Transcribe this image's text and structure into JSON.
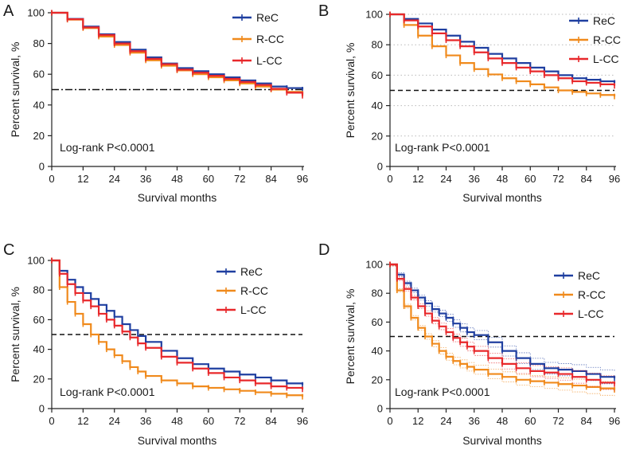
{
  "chart_data": [
    {
      "type": "line",
      "panel": "A",
      "xlabel": "Survival months",
      "ylabel": "Percent survival, %",
      "xlim": [
        0,
        96
      ],
      "ylim": [
        0,
        100
      ],
      "xticks": [
        0,
        12,
        24,
        36,
        48,
        60,
        72,
        84,
        96
      ],
      "yticks": [
        0,
        20,
        40,
        60,
        80,
        100
      ],
      "grid": false,
      "reference_line": {
        "y": 50,
        "style": "dash-dot"
      },
      "annotation": "Log-rank P<0.0001",
      "legend": [
        "ReC",
        "R-CC",
        "L-CC"
      ],
      "x": [
        0,
        6,
        12,
        18,
        24,
        30,
        36,
        42,
        48,
        54,
        60,
        66,
        72,
        78,
        84,
        90,
        96
      ],
      "series": [
        {
          "name": "ReC",
          "color": "#1f3fa0",
          "values": [
            100,
            96,
            91,
            86,
            81,
            76,
            71,
            67,
            64,
            62,
            60,
            58,
            56,
            54,
            52,
            51,
            50
          ]
        },
        {
          "name": "R-CC",
          "color": "#f08a1c",
          "values": [
            100,
            95.5,
            90,
            84.5,
            79,
            74,
            69,
            65.5,
            62.5,
            60,
            58,
            56,
            54,
            52,
            50,
            48.5,
            47
          ]
        },
        {
          "name": "L-CC",
          "color": "#e8282b",
          "values": [
            100,
            95.8,
            90.5,
            85.5,
            80,
            75,
            70,
            66.5,
            63,
            61,
            59,
            57,
            55,
            53,
            50.5,
            48,
            46
          ]
        }
      ]
    },
    {
      "type": "line",
      "panel": "B",
      "xlabel": "Survival months",
      "ylabel": "Percent survival, %",
      "xlim": [
        0,
        96
      ],
      "ylim": [
        0,
        100
      ],
      "xticks": [
        0,
        12,
        24,
        36,
        48,
        60,
        72,
        84,
        96
      ],
      "yticks": [
        0,
        20,
        40,
        60,
        80,
        100
      ],
      "grid": true,
      "reference_line": {
        "y": 50,
        "style": "dashed"
      },
      "annotation": "Log-rank P<0.0001",
      "legend": [
        "ReC",
        "R-CC",
        "L-CC"
      ],
      "x": [
        0,
        6,
        12,
        18,
        24,
        30,
        36,
        42,
        48,
        54,
        60,
        66,
        72,
        78,
        84,
        90,
        96
      ],
      "series": [
        {
          "name": "ReC",
          "color": "#1f3fa0",
          "values": [
            100,
            97,
            94,
            90,
            86,
            82,
            78,
            74,
            71,
            68,
            65,
            62.5,
            60,
            58,
            57,
            56,
            55
          ]
        },
        {
          "name": "R-CC",
          "color": "#f08a1c",
          "values": [
            100,
            93,
            86,
            79,
            73,
            68,
            64,
            60.5,
            58,
            56,
            54,
            52,
            50,
            49,
            48,
            47,
            46
          ]
        },
        {
          "name": "L-CC",
          "color": "#e8282b",
          "values": [
            100,
            96,
            92,
            87.5,
            83,
            79,
            75,
            71,
            68,
            65,
            62.5,
            60,
            58,
            56,
            55,
            54,
            53
          ]
        }
      ]
    },
    {
      "type": "line",
      "panel": "C",
      "xlabel": "Survival months",
      "ylabel": "Percent survival, %",
      "xlim": [
        0,
        96
      ],
      "ylim": [
        0,
        100
      ],
      "xticks": [
        0,
        12,
        24,
        36,
        48,
        60,
        72,
        84,
        96
      ],
      "yticks": [
        0,
        20,
        40,
        60,
        80,
        100
      ],
      "grid": false,
      "reference_line": {
        "y": 50,
        "style": "dashed"
      },
      "annotation": "Log-rank P<0.0001",
      "legend": [
        "ReC",
        "R-CC",
        "L-CC"
      ],
      "x": [
        0,
        3,
        6,
        9,
        12,
        15,
        18,
        21,
        24,
        27,
        30,
        33,
        36,
        42,
        48,
        54,
        60,
        66,
        72,
        78,
        84,
        90,
        96
      ],
      "series": [
        {
          "name": "ReC",
          "color": "#1f3fa0",
          "values": [
            100,
            93,
            87,
            82,
            78,
            74,
            70,
            66,
            62,
            57,
            53,
            49,
            45,
            39,
            34,
            30,
            27,
            25,
            23,
            21,
            19,
            17,
            16
          ]
        },
        {
          "name": "R-CC",
          "color": "#f08a1c",
          "values": [
            100,
            82,
            72,
            64,
            57,
            50,
            45,
            40,
            36,
            32,
            28,
            25,
            22,
            19,
            17,
            15,
            14,
            13,
            12,
            11,
            10,
            9,
            8
          ]
        },
        {
          "name": "L-CC",
          "color": "#e8282b",
          "values": [
            100,
            91,
            84,
            78,
            73,
            69,
            64,
            60,
            56,
            52,
            48,
            44,
            41,
            35,
            31,
            27,
            24,
            21,
            19,
            17,
            15,
            14,
            13
          ]
        }
      ]
    },
    {
      "type": "line",
      "panel": "D",
      "xlabel": "Survival months",
      "ylabel": "Percent survival, %",
      "xlim": [
        0,
        96
      ],
      "ylim": [
        0,
        100
      ],
      "xticks": [
        0,
        12,
        24,
        36,
        48,
        60,
        72,
        84,
        96
      ],
      "yticks": [
        0,
        20,
        40,
        60,
        80,
        100
      ],
      "grid": false,
      "reference_line": {
        "y": 50,
        "style": "dashed"
      },
      "annotation": "Log-rank P<0.0001",
      "legend": [
        "ReC",
        "R-CC",
        "L-CC"
      ],
      "confidence_bands": true,
      "x": [
        0,
        3,
        6,
        9,
        12,
        15,
        18,
        21,
        24,
        27,
        30,
        33,
        36,
        42,
        48,
        54,
        60,
        66,
        72,
        78,
        84,
        90,
        96
      ],
      "series": [
        {
          "name": "ReC",
          "color": "#1f3fa0",
          "values": [
            100,
            93,
            87,
            82,
            77,
            73,
            69,
            66,
            63,
            59,
            56,
            53,
            51,
            46,
            40,
            35,
            31,
            28,
            27,
            26,
            24,
            22,
            21
          ]
        },
        {
          "name": "R-CC",
          "color": "#f08a1c",
          "values": [
            100,
            82,
            71,
            63,
            56,
            50,
            45,
            40,
            36,
            33,
            31,
            29,
            27,
            24,
            22,
            20,
            19,
            18,
            17,
            16,
            15,
            14,
            13
          ]
        },
        {
          "name": "L-CC",
          "color": "#e8282b",
          "values": [
            100,
            90,
            83,
            77,
            71,
            66,
            61,
            57,
            53,
            49,
            46,
            43,
            40,
            35,
            31,
            28,
            26,
            25,
            24,
            22,
            20,
            18,
            17
          ]
        }
      ]
    }
  ]
}
